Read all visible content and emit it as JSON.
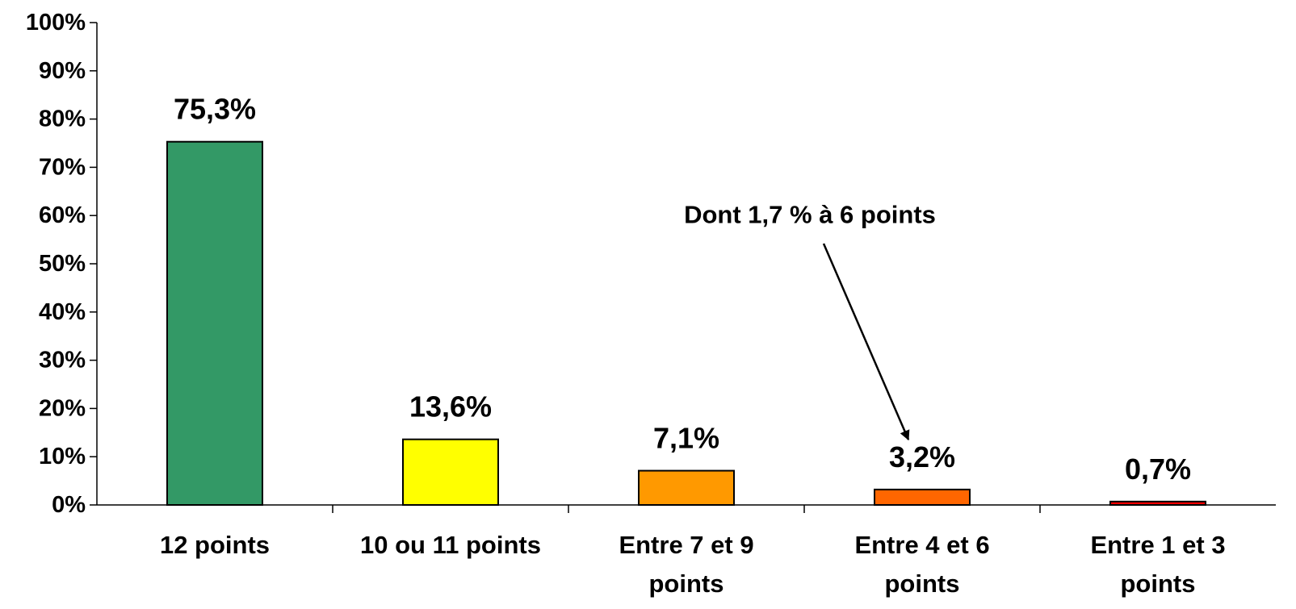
{
  "chart_data": {
    "type": "bar",
    "title": "",
    "xlabel": "",
    "ylabel": "",
    "ylim": [
      0,
      100
    ],
    "y_ticks": [
      "0%",
      "10%",
      "20%",
      "30%",
      "40%",
      "50%",
      "60%",
      "70%",
      "80%",
      "90%",
      "100%"
    ],
    "grid": false,
    "legend": "none",
    "categories": [
      [
        "12 points"
      ],
      [
        "10 ou 11 points"
      ],
      [
        "Entre 7 et 9",
        "points"
      ],
      [
        "Entre 4 et 6",
        "points"
      ],
      [
        "Entre 1 et 3",
        "points"
      ]
    ],
    "values": [
      75.3,
      13.6,
      7.1,
      3.2,
      0.7
    ],
    "data_labels": [
      "75,3%",
      "13,6%",
      "7,1%",
      "3,2%",
      "0,7%"
    ],
    "colors": [
      "#339966",
      "#ffff00",
      "#ff9900",
      "#ff6600",
      "#ff0000"
    ],
    "annotation": {
      "text": "Dont 1,7 % à 6 points",
      "points_to_category": 3
    }
  }
}
